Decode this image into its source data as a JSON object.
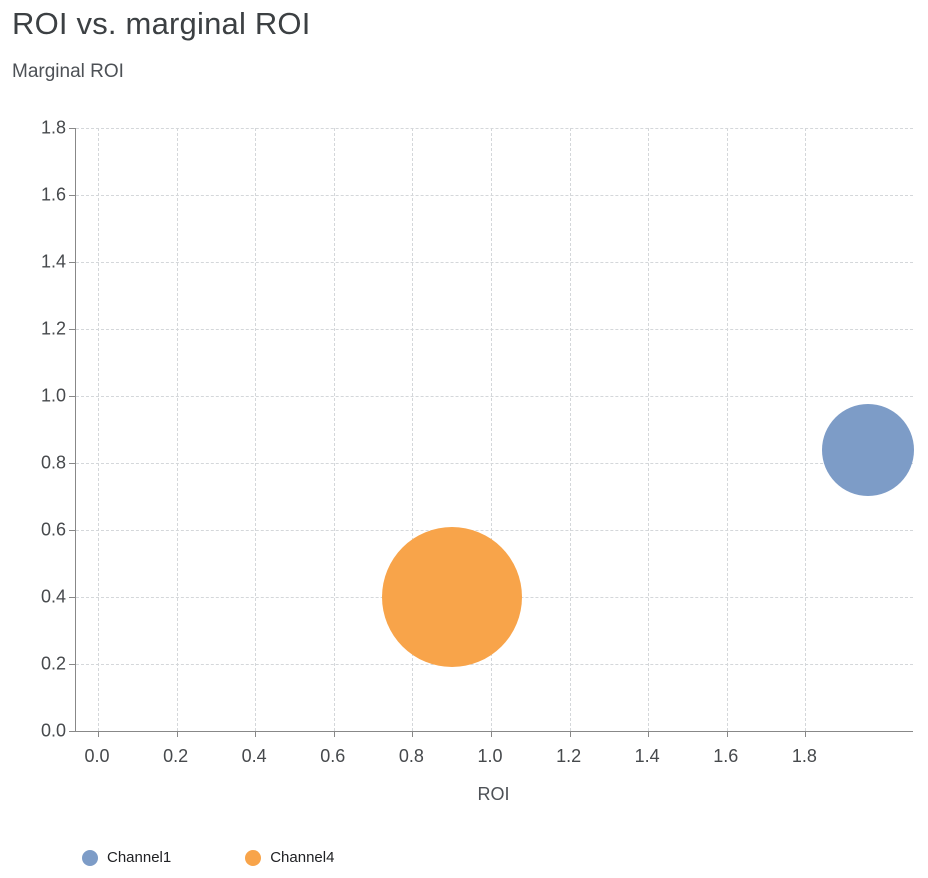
{
  "chart_data": {
    "type": "scatter",
    "title": "ROI vs. marginal ROI",
    "xlabel": "ROI",
    "ylabel": "Marginal ROI",
    "xlim": [
      0,
      2.07
    ],
    "ylim": [
      0,
      1.8
    ],
    "x_ticks": [
      0.0,
      0.2,
      0.4,
      0.6,
      0.8,
      1.0,
      1.2,
      1.4,
      1.6,
      1.8
    ],
    "y_ticks": [
      0.0,
      0.2,
      0.4,
      0.6,
      0.8,
      1.0,
      1.2,
      1.4,
      1.6,
      1.8
    ],
    "grid": "dashed",
    "legend_position": "bottom",
    "series": [
      {
        "name": "Channel1",
        "color": "#7D9CC7",
        "x": 1.96,
        "y": 0.84,
        "radius_px": 46
      },
      {
        "name": "Channel4",
        "color": "#F8A44A",
        "x": 0.9,
        "y": 0.4,
        "radius_px": 70
      }
    ]
  }
}
